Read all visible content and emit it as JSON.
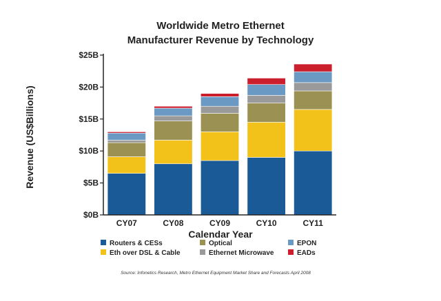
{
  "chart_data": {
    "type": "bar",
    "stacked": true,
    "title_lines": [
      "Worldwide Metro Ethernet",
      "Manufacturer Revenue by Technology"
    ],
    "xlabel": "Calendar Year",
    "ylabel": "Revenue (US$Billions)",
    "ylim": [
      0,
      25
    ],
    "yticks": [
      0,
      5,
      10,
      15,
      20,
      25
    ],
    "ytick_labels": [
      "$0B",
      "$5B",
      "$10B",
      "$15B",
      "$20B",
      "$25B"
    ],
    "categories": [
      "CY07",
      "CY08",
      "CY09",
      "CY10",
      "CY11"
    ],
    "series": [
      {
        "name": "Routers & CESs",
        "color": "#1a5a96",
        "values": [
          6.5,
          8.0,
          8.5,
          9.0,
          10.0
        ]
      },
      {
        "name": "Eth over DSL & Cable",
        "color": "#f2c21b",
        "values": [
          2.6,
          3.7,
          4.5,
          5.5,
          6.5
        ]
      },
      {
        "name": "Optical",
        "color": "#9b9152",
        "values": [
          2.2,
          3.0,
          2.9,
          3.0,
          2.9
        ]
      },
      {
        "name": "Ethernet Microwave",
        "color": "#9a9a9a",
        "values": [
          0.4,
          0.8,
          1.1,
          1.2,
          1.3
        ]
      },
      {
        "name": "EPON",
        "color": "#6a9ac4",
        "values": [
          1.1,
          1.2,
          1.5,
          1.7,
          1.7
        ]
      },
      {
        "name": "EADs",
        "color": "#cc1f2e",
        "values": [
          0.2,
          0.3,
          0.5,
          1.0,
          1.2
        ]
      }
    ],
    "legend": {
      "placement": "bottom",
      "order": [
        "Routers & CESs",
        "Optical",
        "EPON",
        "Eth over DSL & Cable",
        "Ethernet Microwave",
        "EADs"
      ]
    },
    "grid": false
  },
  "source_note": "Source: Infonetics Research, Metro Ethernet Equipment Market Share and Forecasts April 2008"
}
